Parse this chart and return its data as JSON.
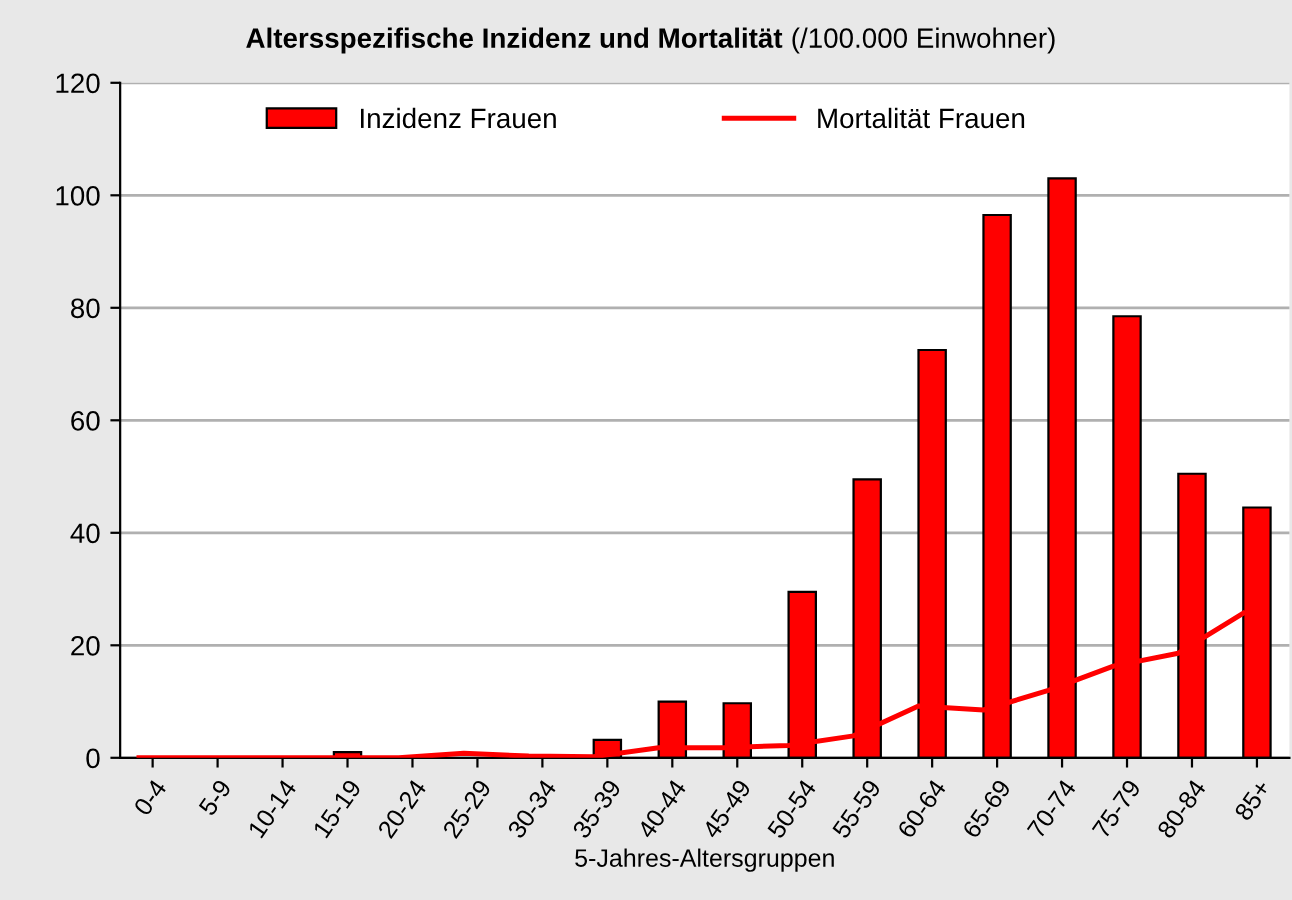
{
  "chart_data": {
    "type": "bar",
    "title": "Altersspezifische Inzidenz und Mortalität",
    "subtitle": "(/100.000 Einwohner)",
    "xlabel": "5-Jahres-Altersgruppen",
    "categories": [
      "0-4",
      "5-9",
      "10-14",
      "15-19",
      "20-24",
      "25-29",
      "30-34",
      "35-39",
      "40-44",
      "45-49",
      "50-54",
      "55-59",
      "60-64",
      "65-69",
      "70-74",
      "75-79",
      "80-84",
      "85+"
    ],
    "series": [
      {
        "name": "Inzidenz Frauen",
        "color": "#ff0000",
        "values": [
          null,
          null,
          null,
          1,
          null,
          null,
          0.5,
          3.2,
          10,
          9.7,
          29.5,
          49.5,
          72.5,
          96.5,
          103,
          78.5,
          50.5,
          44.5
        ]
      },
      {
        "name": "Mortalität Frauen",
        "type": "line",
        "color": "#ff0000",
        "values": [
          0,
          0,
          0,
          0,
          0,
          0.8,
          0.3,
          0.2,
          1.8,
          1.8,
          2.2,
          3.9,
          9.2,
          8.5,
          12,
          16.3,
          18.6,
          25.7
        ]
      }
    ],
    "ylim": [
      0,
      120
    ],
    "yticks": [
      0,
      20,
      40,
      60,
      80,
      100,
      120
    ],
    "grid": "y",
    "legend": "top",
    "marker": "none",
    "line_style": "solid"
  }
}
